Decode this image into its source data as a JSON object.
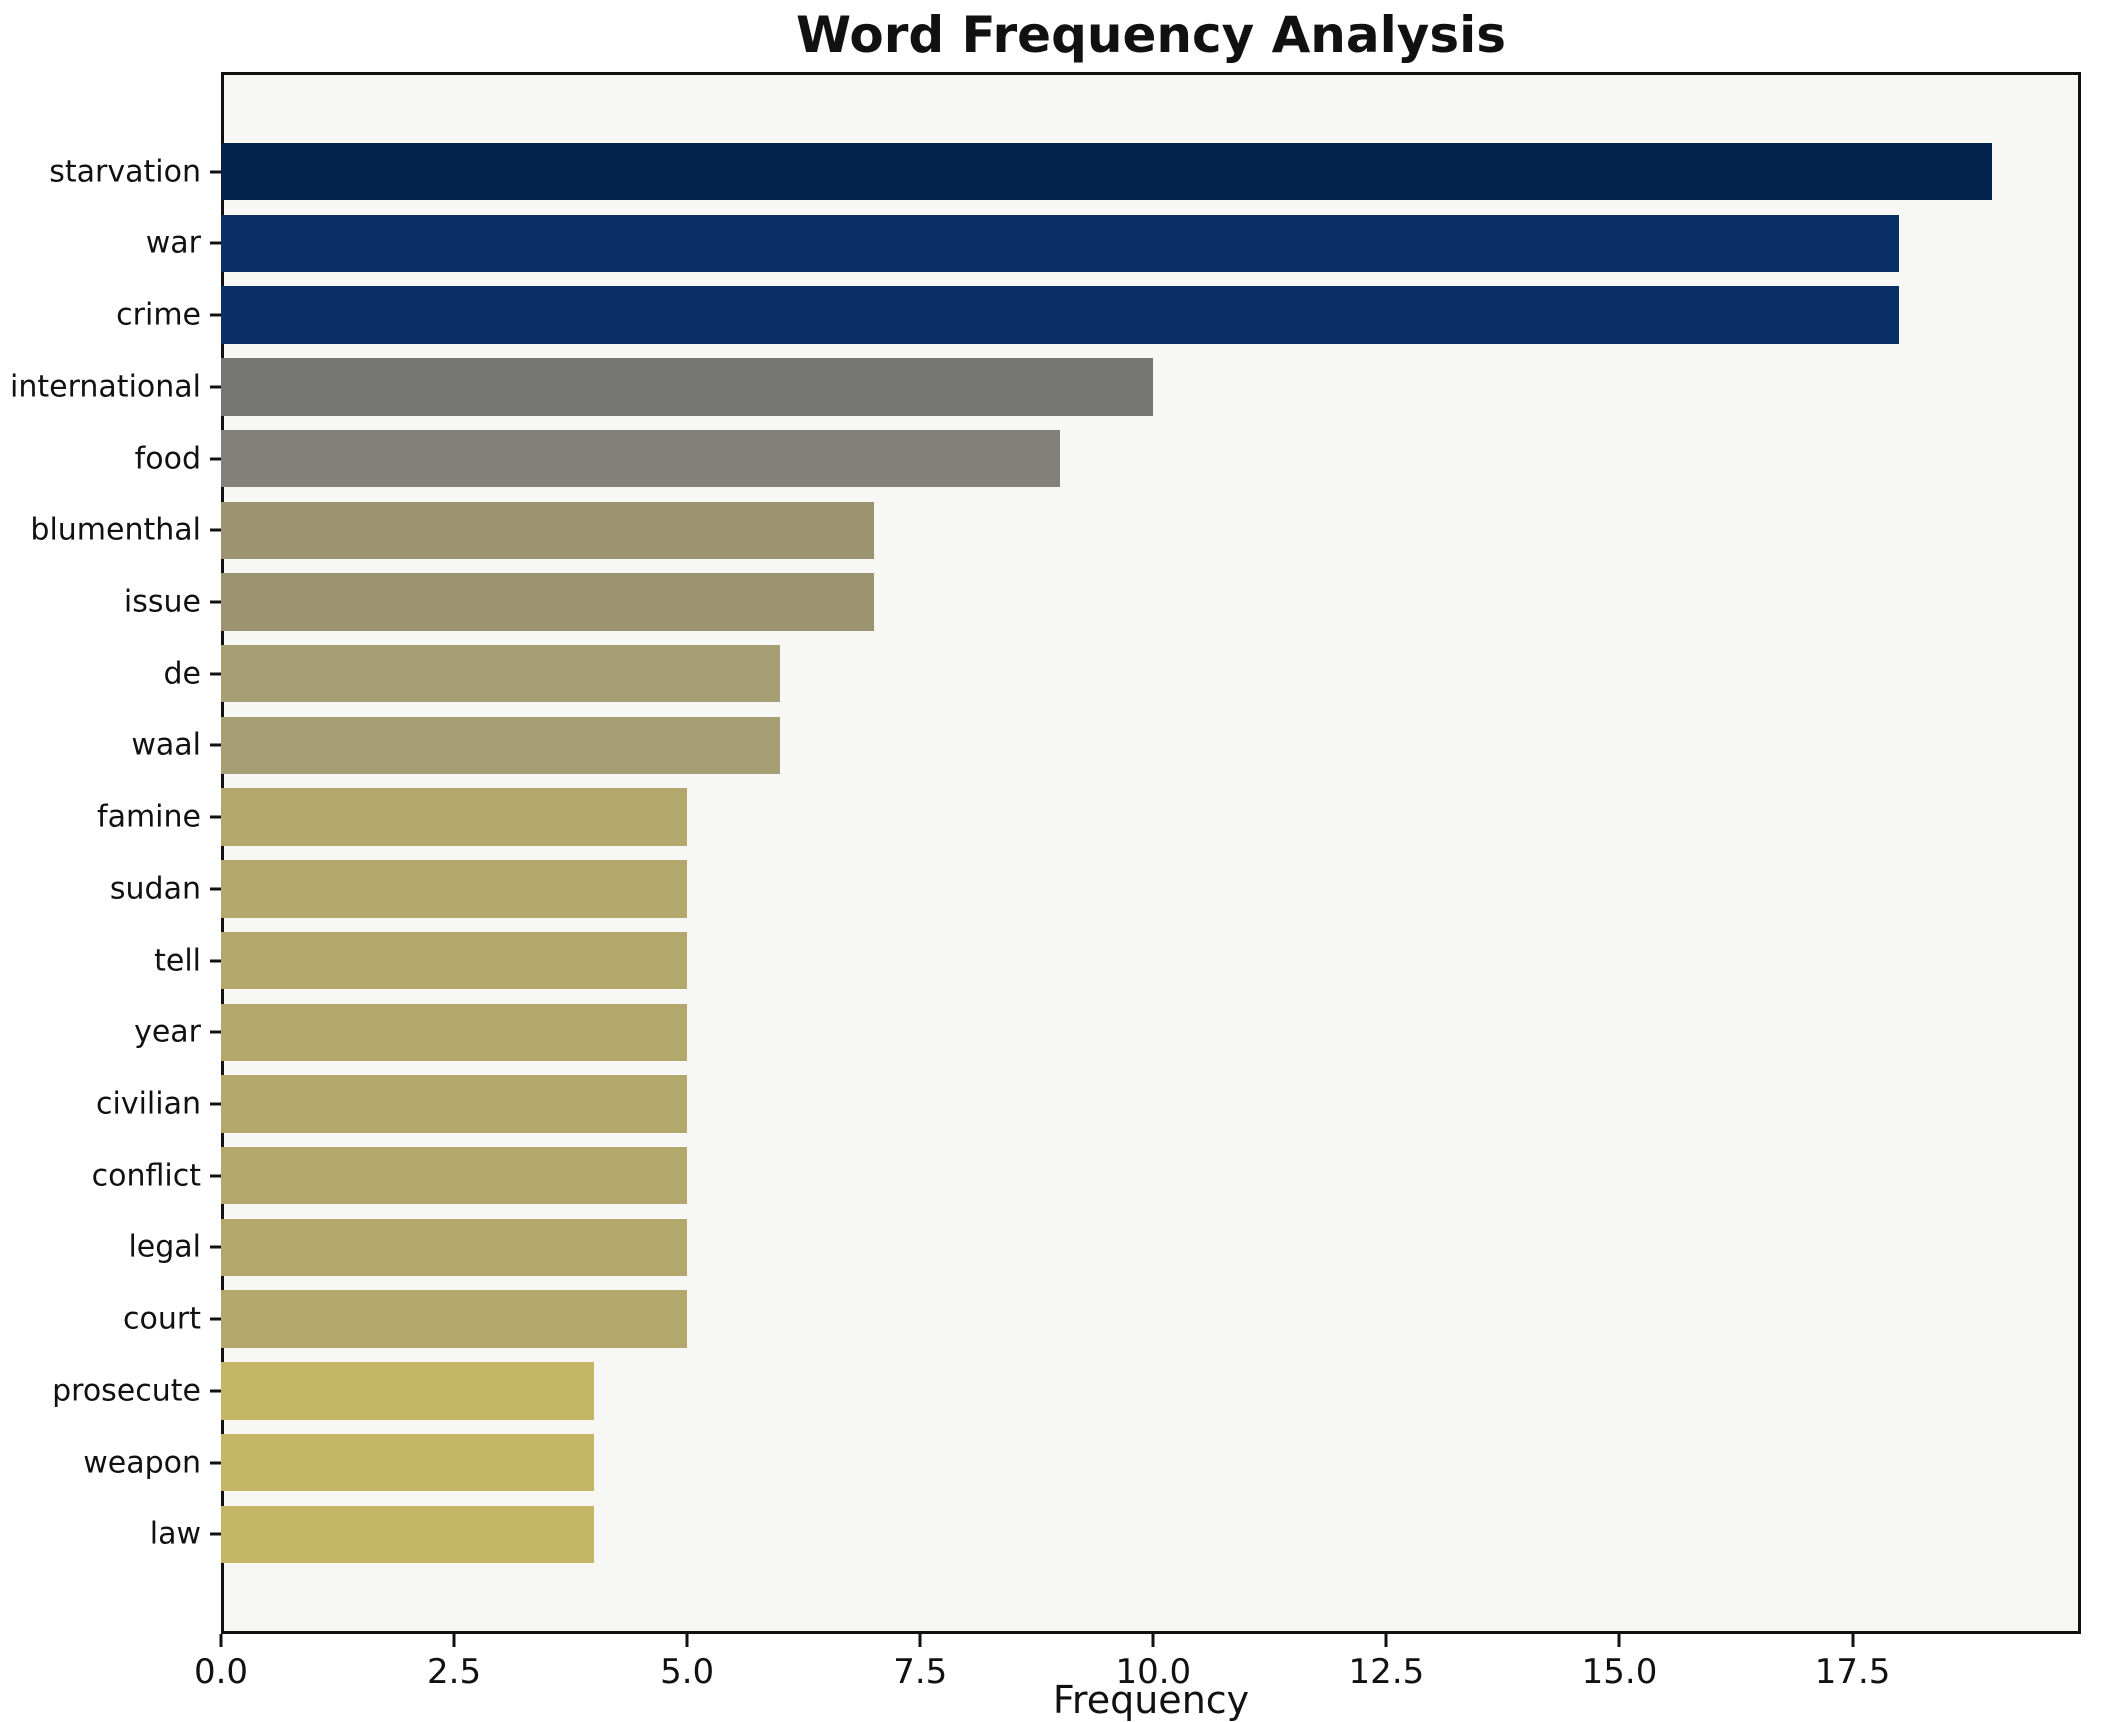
{
  "title": "Word Frequency Analysis",
  "chart_data": {
    "type": "bar",
    "orientation": "horizontal",
    "title": "Word Frequency Analysis",
    "xlabel": "Frequency",
    "ylabel": "",
    "categories": [
      "starvation",
      "war",
      "crime",
      "international",
      "food",
      "blumenthal",
      "issue",
      "de",
      "waal",
      "famine",
      "sudan",
      "tell",
      "year",
      "civilian",
      "conflict",
      "legal",
      "court",
      "prosecute",
      "weapon",
      "law"
    ],
    "values": [
      19,
      18,
      18,
      10,
      9,
      7,
      7,
      6,
      6,
      5,
      5,
      5,
      5,
      5,
      5,
      5,
      5,
      4,
      4,
      4
    ],
    "bar_colors": [
      "#03234d",
      "#0a3066",
      "#0a3066",
      "#767675",
      "#81807a",
      "#9c9471",
      "#9c9471",
      "#a89e73",
      "#a89e73",
      "#b4a76c",
      "#b4a76c",
      "#b4a76c",
      "#b4a76c",
      "#b4a76c",
      "#b4a76c",
      "#b4a76c",
      "#b4a76c",
      "#c5b666",
      "#c5b666",
      "#c5b666"
    ],
    "x_tick_labels": [
      "0.0",
      "2.5",
      "5.0",
      "7.5",
      "10.0",
      "12.5",
      "15.0",
      "17.5"
    ],
    "x_tick_values": [
      0,
      2.5,
      5,
      7.5,
      10,
      12.5,
      15,
      17.5
    ],
    "xlim": [
      0,
      19.95
    ],
    "grid": false,
    "legend": "none",
    "plot_background": "#f7f7f6",
    "figure_background": "#ffffff",
    "spine_color": "#111111"
  }
}
